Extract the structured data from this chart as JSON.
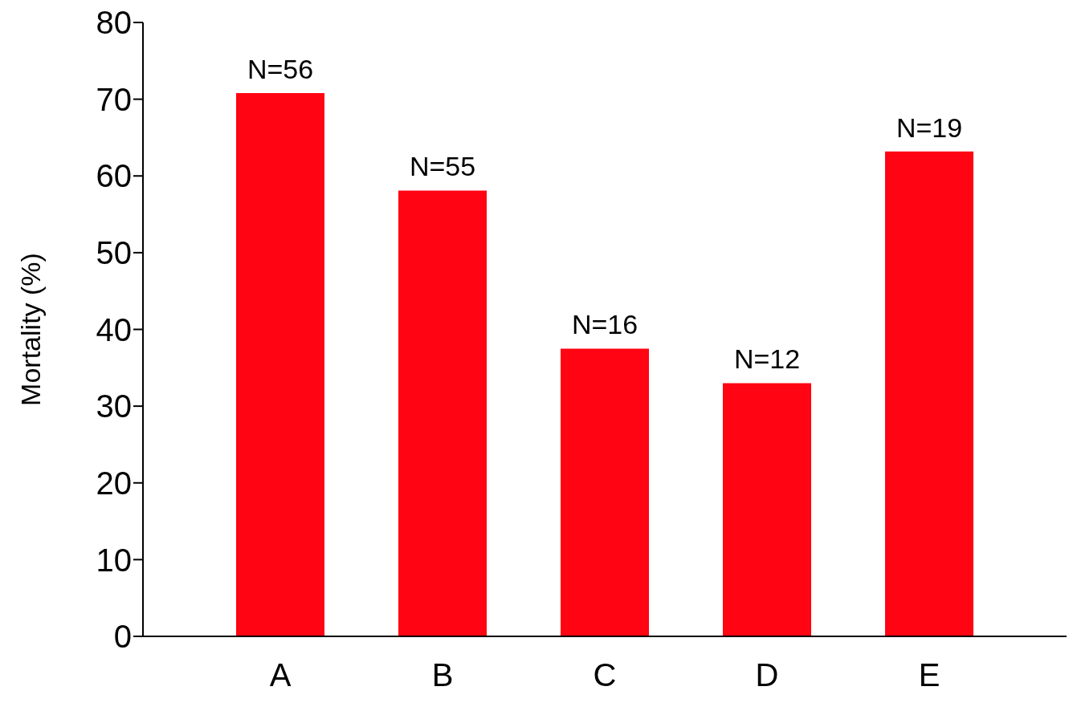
{
  "chart_data": {
    "type": "bar",
    "ylabel": "Mortality (%)",
    "categories": [
      "A",
      "B",
      "C",
      "D",
      "E"
    ],
    "values": [
      70.8,
      58.1,
      37.5,
      33.0,
      63.2
    ],
    "annotations": [
      {
        "text": "N=56",
        "x": "A",
        "y": 70.8
      },
      {
        "text": "N=55",
        "x": "B",
        "y": 58.1
      },
      {
        "text": "N=16",
        "x": "C",
        "y": 37.5
      },
      {
        "text": "N=12",
        "x": "D",
        "y": 33.0
      },
      {
        "text": "N=19",
        "x": "E",
        "y": 63.2
      }
    ],
    "color": "#ff0412",
    "ylim": [
      0,
      80
    ],
    "yticks": [
      0,
      10,
      20,
      30,
      40,
      50,
      60,
      70,
      80
    ],
    "grid": false,
    "legend": false
  }
}
